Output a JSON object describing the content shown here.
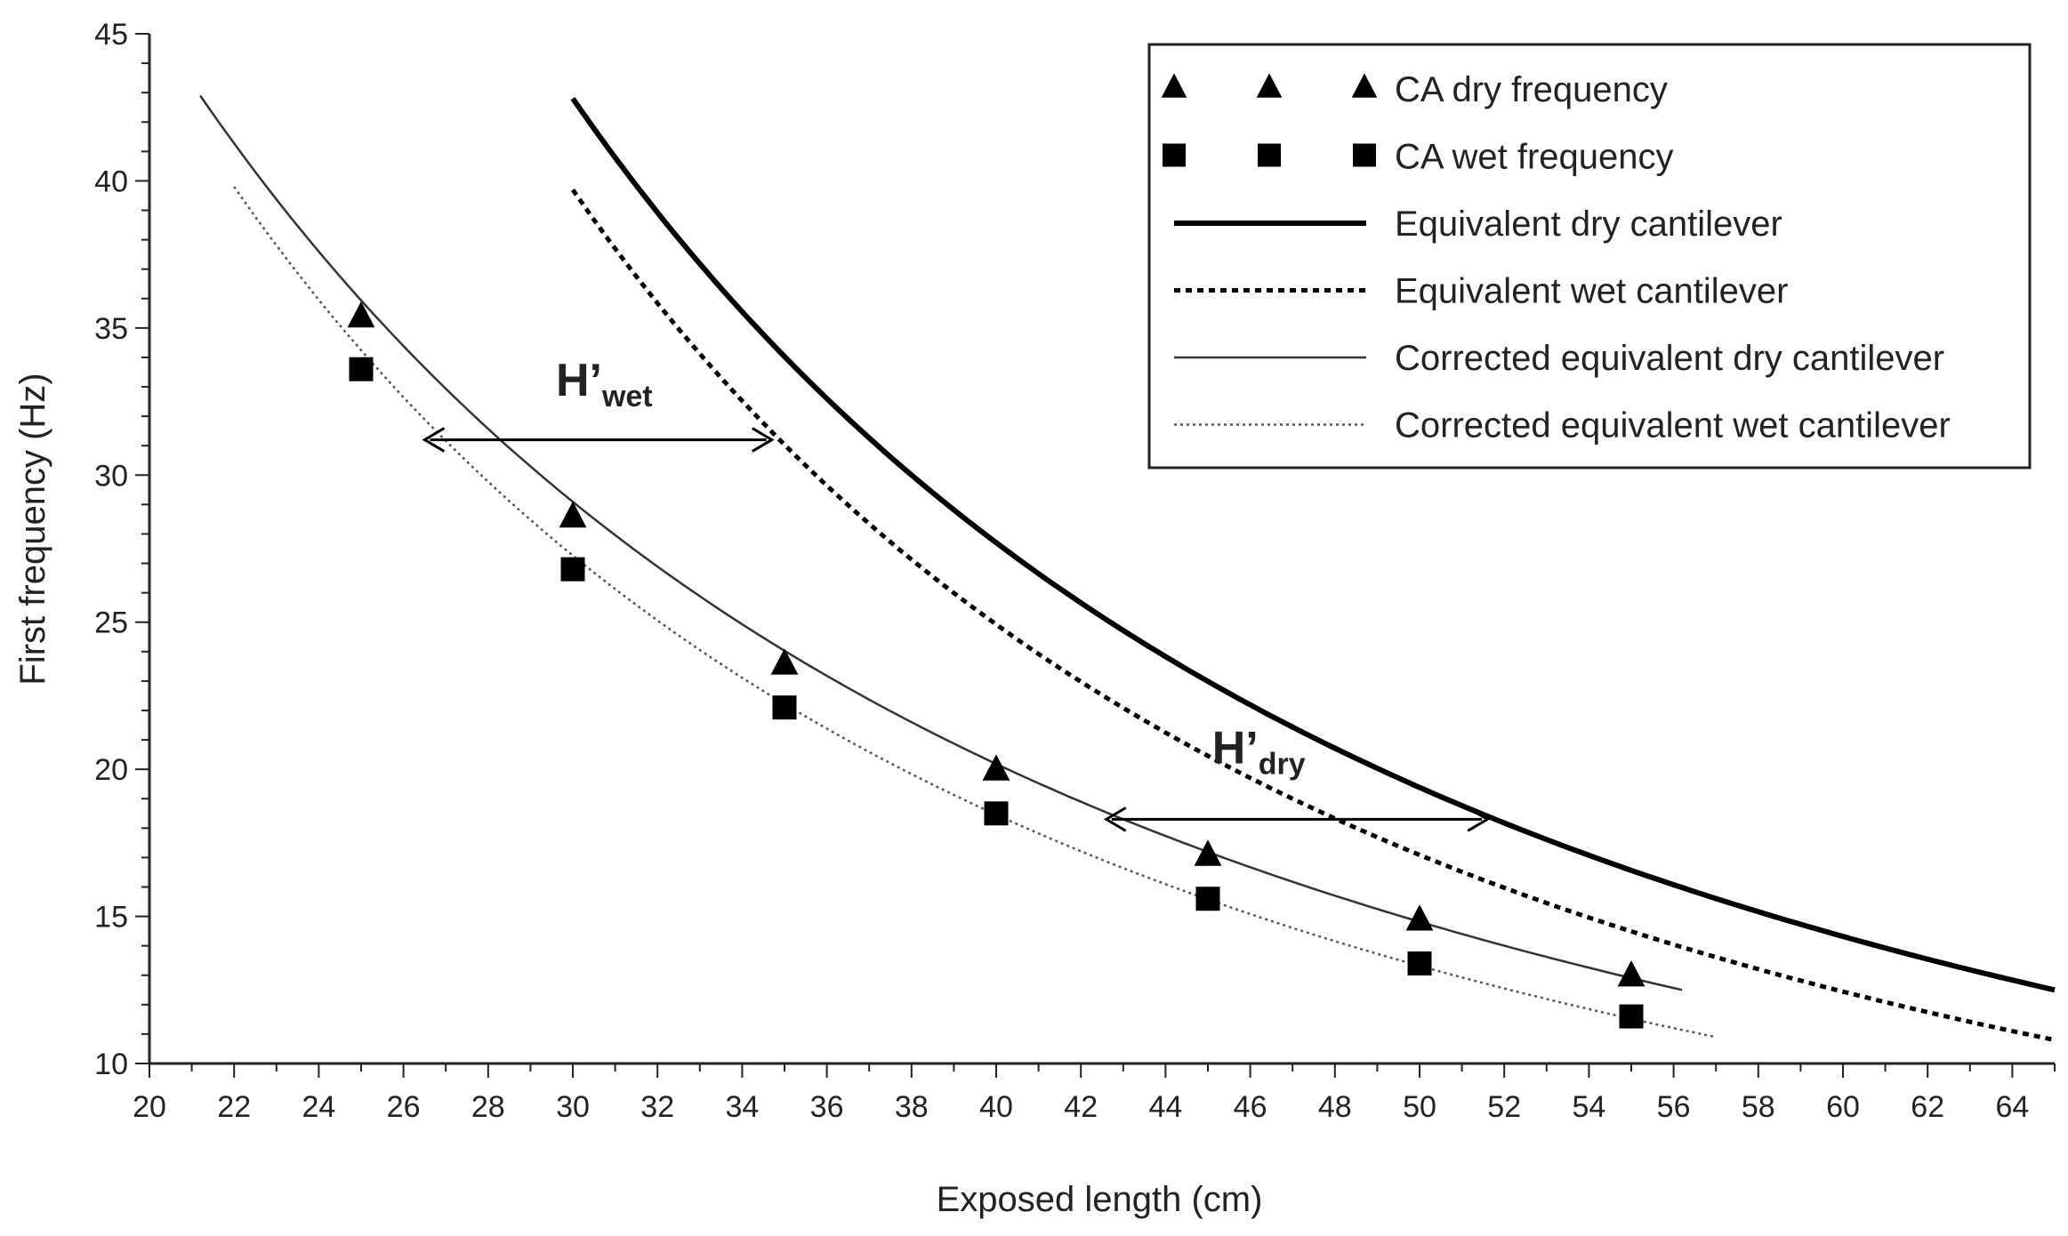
{
  "chart_data": {
    "type": "line",
    "title": "",
    "xlabel": "Exposed length (cm)",
    "ylabel": "First frequency (Hz)",
    "xlim": [
      20,
      65
    ],
    "ylim": [
      10,
      45
    ],
    "x_ticks": [
      20,
      22,
      24,
      26,
      28,
      30,
      32,
      34,
      36,
      38,
      40,
      42,
      44,
      46,
      48,
      50,
      52,
      54,
      56,
      58,
      60,
      62,
      64
    ],
    "y_ticks": [
      10,
      15,
      20,
      25,
      30,
      35,
      40,
      45
    ],
    "series": [
      {
        "name": "CA dry frequency",
        "kind": "markers",
        "marker": "triangle",
        "x": [
          25,
          30,
          35,
          40,
          45,
          50,
          55
        ],
        "y": [
          35.4,
          28.6,
          23.6,
          20.0,
          17.1,
          14.9,
          13.0
        ]
      },
      {
        "name": "CA wet frequency",
        "kind": "markers",
        "marker": "square",
        "x": [
          25,
          30,
          35,
          40,
          45,
          50,
          55
        ],
        "y": [
          33.6,
          26.8,
          22.1,
          18.5,
          15.6,
          13.4,
          11.6
        ]
      },
      {
        "name": "Equivalent dry cantilever",
        "kind": "line",
        "style": "thick-solid",
        "x_range": [
          30,
          65
        ],
        "y_at_start": 42.8,
        "y_at_end": 12.5
      },
      {
        "name": "Equivalent wet cantilever",
        "kind": "line",
        "style": "dotted",
        "x_range": [
          30,
          65
        ],
        "y_at_start": 39.7,
        "y_at_end": 10.8
      },
      {
        "name": "Corrected equivalent dry cantilever",
        "kind": "line",
        "style": "thin-solid",
        "x_range": [
          21.2,
          56.2
        ],
        "y_at_start": 42.9,
        "y_at_end": 12.5
      },
      {
        "name": "Corrected equivalent wet cantilever",
        "kind": "line",
        "style": "fine-dotted",
        "x_range": [
          22.0,
          57.0
        ],
        "y_at_start": 39.8,
        "y_at_end": 10.9
      }
    ],
    "annotations": [
      {
        "label": "H’",
        "subscript": "wet",
        "arrow_x": [
          26.5,
          34.7
        ],
        "arrow_y": 31.2,
        "text_x": 29.6,
        "text_y": 32.7
      },
      {
        "label": "H’",
        "subscript": "dry",
        "arrow_x": [
          42.6,
          51.6
        ],
        "arrow_y": 18.3,
        "text_x": 45.1,
        "text_y": 20.2
      }
    ],
    "legend": "top-right",
    "grid": false
  }
}
